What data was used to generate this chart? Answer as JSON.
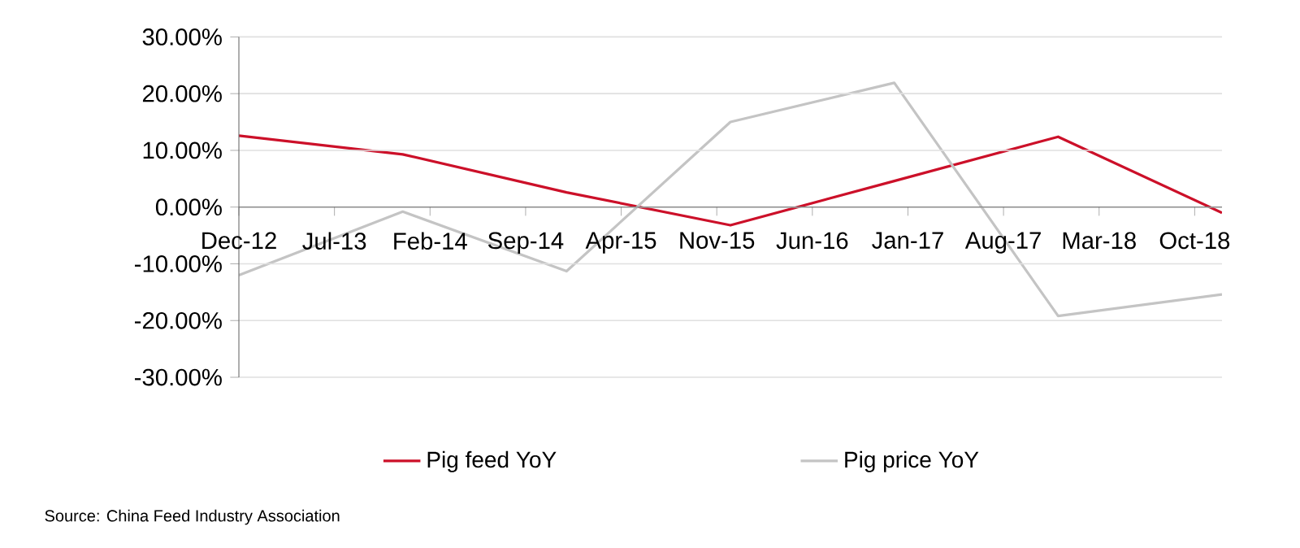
{
  "chart_data": {
    "type": "line",
    "x": [
      "2012-12",
      "2013-12",
      "2014-12",
      "2015-12",
      "2016-12",
      "2017-12",
      "2018-12"
    ],
    "series": [
      {
        "name": "Pig feed YoY",
        "color": "#cc1029",
        "values": [
          12.6,
          9.3,
          2.6,
          -3.2,
          4.6,
          12.4,
          -1.0
        ]
      },
      {
        "name": "Pig price YoY",
        "color": "#c4c4c4",
        "values": [
          -12.0,
          -0.8,
          -11.3,
          15.0,
          21.9,
          -19.2,
          -15.4
        ]
      }
    ],
    "xlim": [
      "2012-12",
      "2018-12"
    ],
    "xticks": [
      {
        "value": "2012-12",
        "label": "Dec-12"
      },
      {
        "value": "2013-07",
        "label": "Jul-13"
      },
      {
        "value": "2014-02",
        "label": "Feb-14"
      },
      {
        "value": "2014-09",
        "label": "Sep-14"
      },
      {
        "value": "2015-04",
        "label": "Apr-15"
      },
      {
        "value": "2015-11",
        "label": "Nov-15"
      },
      {
        "value": "2016-06",
        "label": "Jun-16"
      },
      {
        "value": "2017-01",
        "label": "Jan-17"
      },
      {
        "value": "2017-08",
        "label": "Aug-17"
      },
      {
        "value": "2018-03",
        "label": "Mar-18"
      },
      {
        "value": "2018-10",
        "label": "Oct-18"
      }
    ],
    "ylim": [
      -30,
      30
    ],
    "yticks": [
      {
        "value": 30,
        "label": "30.00%"
      },
      {
        "value": 20,
        "label": "20.00%"
      },
      {
        "value": 10,
        "label": "10.00%"
      },
      {
        "value": 0,
        "label": "0.00%"
      },
      {
        "value": -10,
        "label": "-10.00%"
      },
      {
        "value": -20,
        "label": "-20.00%"
      },
      {
        "value": -30,
        "label": "-30.00%"
      }
    ],
    "grid": "y",
    "legend": "bottom",
    "marker": "none",
    "line_style": "solid",
    "annotations": [
      "Source: China Feed Industry Association"
    ]
  }
}
